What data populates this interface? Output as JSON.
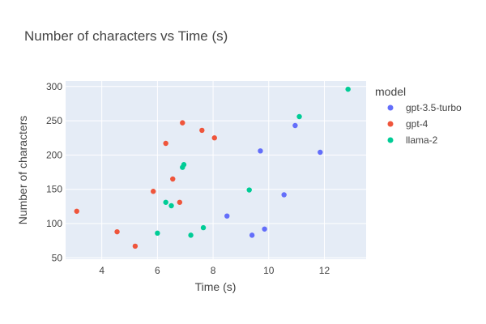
{
  "chart_data": {
    "type": "scatter",
    "title": "Number of characters vs Time (s)",
    "xlabel": "Time (s)",
    "ylabel": "Number of characters",
    "xlim": [
      2.7,
      13.5
    ],
    "ylim": [
      48,
      308
    ],
    "xticks": [
      4,
      6,
      8,
      10,
      12
    ],
    "yticks": [
      50,
      100,
      150,
      200,
      250,
      300
    ],
    "grid": true,
    "legend": {
      "title": "model",
      "placement": "right"
    },
    "series": [
      {
        "name": "gpt-3.5-turbo",
        "color": "#636efa",
        "points": [
          {
            "x": 8.5,
            "y": 111
          },
          {
            "x": 9.4,
            "y": 83
          },
          {
            "x": 9.7,
            "y": 206
          },
          {
            "x": 9.85,
            "y": 92
          },
          {
            "x": 10.55,
            "y": 142
          },
          {
            "x": 10.95,
            "y": 243
          },
          {
            "x": 11.85,
            "y": 204
          }
        ]
      },
      {
        "name": "gpt-4",
        "color": "#ef553b",
        "points": [
          {
            "x": 3.1,
            "y": 118
          },
          {
            "x": 4.55,
            "y": 88
          },
          {
            "x": 5.2,
            "y": 67
          },
          {
            "x": 5.85,
            "y": 147
          },
          {
            "x": 6.3,
            "y": 217
          },
          {
            "x": 6.55,
            "y": 165
          },
          {
            "x": 6.8,
            "y": 131
          },
          {
            "x": 6.9,
            "y": 247
          },
          {
            "x": 7.6,
            "y": 236
          },
          {
            "x": 8.05,
            "y": 225
          }
        ]
      },
      {
        "name": "llama-2",
        "color": "#00cc96",
        "points": [
          {
            "x": 6.0,
            "y": 86
          },
          {
            "x": 6.3,
            "y": 131
          },
          {
            "x": 6.5,
            "y": 126
          },
          {
            "x": 6.9,
            "y": 182
          },
          {
            "x": 6.95,
            "y": 186
          },
          {
            "x": 7.2,
            "y": 83
          },
          {
            "x": 7.65,
            "y": 94
          },
          {
            "x": 9.3,
            "y": 149
          },
          {
            "x": 11.1,
            "y": 256
          },
          {
            "x": 12.85,
            "y": 296
          }
        ]
      }
    ]
  }
}
